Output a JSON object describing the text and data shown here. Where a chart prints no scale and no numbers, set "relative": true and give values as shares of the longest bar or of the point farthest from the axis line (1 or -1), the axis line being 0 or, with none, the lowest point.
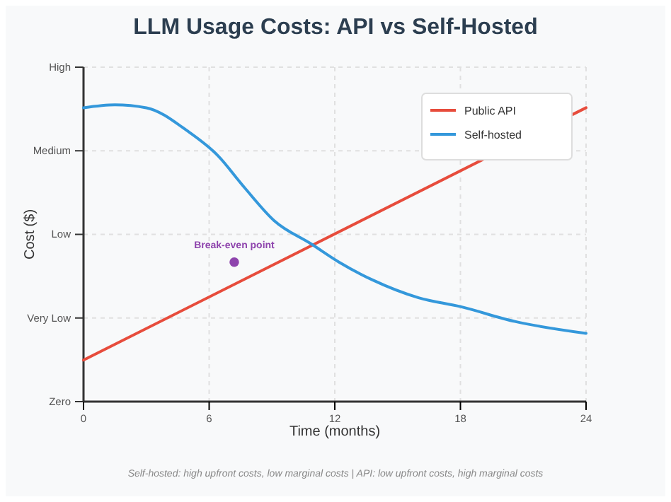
{
  "chart_data": {
    "type": "line",
    "relative": true,
    "title": "LLM Usage Costs: API vs Self-Hosted",
    "xlabel": "Time (months)",
    "ylabel": "Cost ($)",
    "xlim": [
      0,
      24
    ],
    "xticks": [
      0,
      6,
      12,
      18,
      24
    ],
    "grid": true,
    "legend": "top right",
    "marker": "none",
    "series": [
      {
        "name": "Public API",
        "color": "#e74c3c",
        "x": [
          0,
          24
        ],
        "values": [
          0.14,
          0.99
        ]
      },
      {
        "name": "Self-hosted",
        "color": "#3498db",
        "x": [
          0,
          1.5,
          3,
          5,
          6.4,
          7.7,
          9.1,
          10.9,
          12.2,
          13.8,
          16,
          18,
          20.6,
          24
        ],
        "values": [
          0.99,
          1,
          0.99,
          0.91,
          0.83,
          0.72,
          0.61,
          0.53,
          0.47,
          0.41,
          0.35,
          0.32,
          0.27,
          0.23
        ]
      },
      {
        "type": "scatter",
        "marker": "circle",
        "color": "#8e44ad",
        "x": [
          7.2
        ],
        "values": [
          0.47
        ]
      }
    ],
    "annotations": [
      {
        "text": "Break-even point",
        "x": 7.2,
        "y": 0.47
      },
      "Zero",
      "Very Low",
      "Low",
      "Medium",
      "High",
      "Self-hosted: high upfront costs, low marginal costs | API: low upfront costs, high marginal costs"
    ]
  }
}
